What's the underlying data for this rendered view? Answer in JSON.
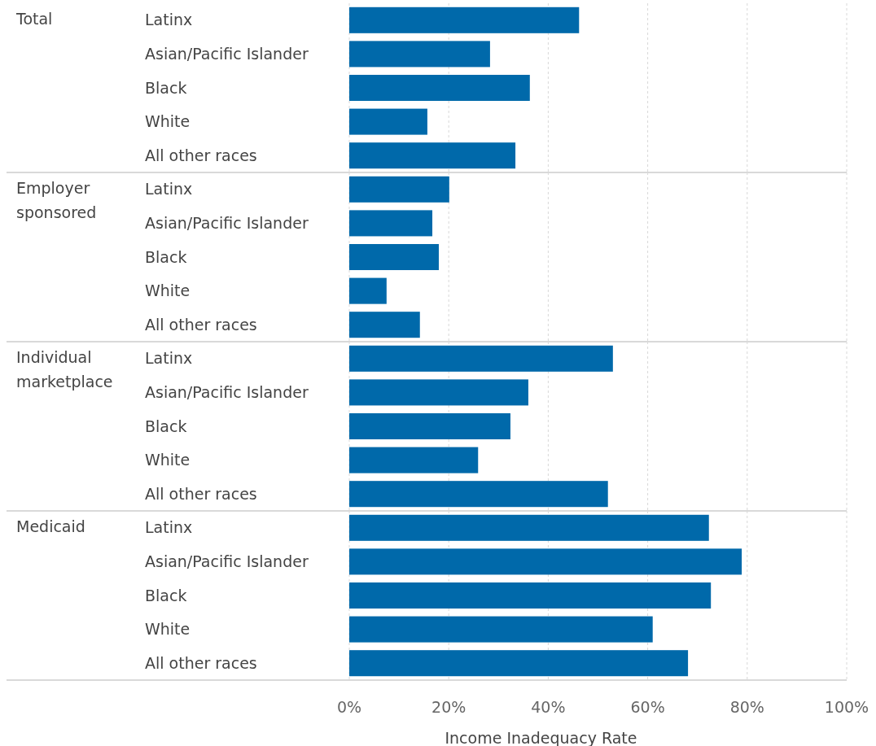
{
  "chart_data": [
    {
      "type": "bar",
      "orientation": "horizontal",
      "title": "Total",
      "categories": [
        "Latinx",
        "Asian/Pacific Islander",
        "Black",
        "White",
        "All other races"
      ],
      "values": [
        46.2,
        28.3,
        36.3,
        15.7,
        33.4
      ],
      "color": "#0069aa",
      "xlim": [
        0,
        100
      ],
      "xticks": [
        {
          "value": 0,
          "label": null
        },
        {
          "value": 20,
          "label": null
        },
        {
          "value": 40,
          "label": null
        },
        {
          "value": 60,
          "label": null
        },
        {
          "value": 80,
          "label": null
        },
        {
          "value": 100,
          "label": null
        }
      ],
      "grid": "x",
      "tick_labels": "y"
    },
    {
      "type": "bar",
      "orientation": "horizontal",
      "title": "Employer sponsored",
      "categories": [
        "Latinx",
        "Asian/Pacific Islander",
        "Black",
        "White",
        "All other races"
      ],
      "values": [
        20.1,
        16.7,
        18.0,
        7.5,
        14.2
      ],
      "color": "#0069aa",
      "xlim": [
        0,
        100
      ],
      "xticks": [
        {
          "value": 0,
          "label": null
        },
        {
          "value": 20,
          "label": null
        },
        {
          "value": 40,
          "label": null
        },
        {
          "value": 60,
          "label": null
        },
        {
          "value": 80,
          "label": null
        },
        {
          "value": 100,
          "label": null
        }
      ],
      "grid": "x",
      "tick_labels": "y"
    },
    {
      "type": "bar",
      "orientation": "horizontal",
      "title": "Individual marketplace",
      "categories": [
        "Latinx",
        "Asian/Pacific Islander",
        "Black",
        "White",
        "All other races"
      ],
      "values": [
        53.0,
        36.0,
        32.4,
        25.9,
        52.0
      ],
      "color": "#0069aa",
      "xlim": [
        0,
        100
      ],
      "xticks": [
        {
          "value": 0,
          "label": null
        },
        {
          "value": 20,
          "label": null
        },
        {
          "value": 40,
          "label": null
        },
        {
          "value": 60,
          "label": null
        },
        {
          "value": 80,
          "label": null
        },
        {
          "value": 100,
          "label": null
        }
      ],
      "grid": "x",
      "tick_labels": "y"
    },
    {
      "type": "bar",
      "orientation": "horizontal",
      "title": "Medicaid",
      "xlabel": "Income Inadequacy Rate",
      "categories": [
        "Latinx",
        "Asian/Pacific Islander",
        "Black",
        "White",
        "All other races"
      ],
      "values": [
        72.3,
        78.9,
        72.7,
        61.0,
        68.1
      ],
      "color": "#0069aa",
      "xlim": [
        0,
        100
      ],
      "xticks": [
        {
          "value": 0,
          "label": "0%"
        },
        {
          "value": 20,
          "label": "20%"
        },
        {
          "value": 40,
          "label": "40%"
        },
        {
          "value": 60,
          "label": "60%"
        },
        {
          "value": 80,
          "label": "80%"
        },
        {
          "value": 100,
          "label": "100%"
        }
      ],
      "grid": "x"
    }
  ]
}
